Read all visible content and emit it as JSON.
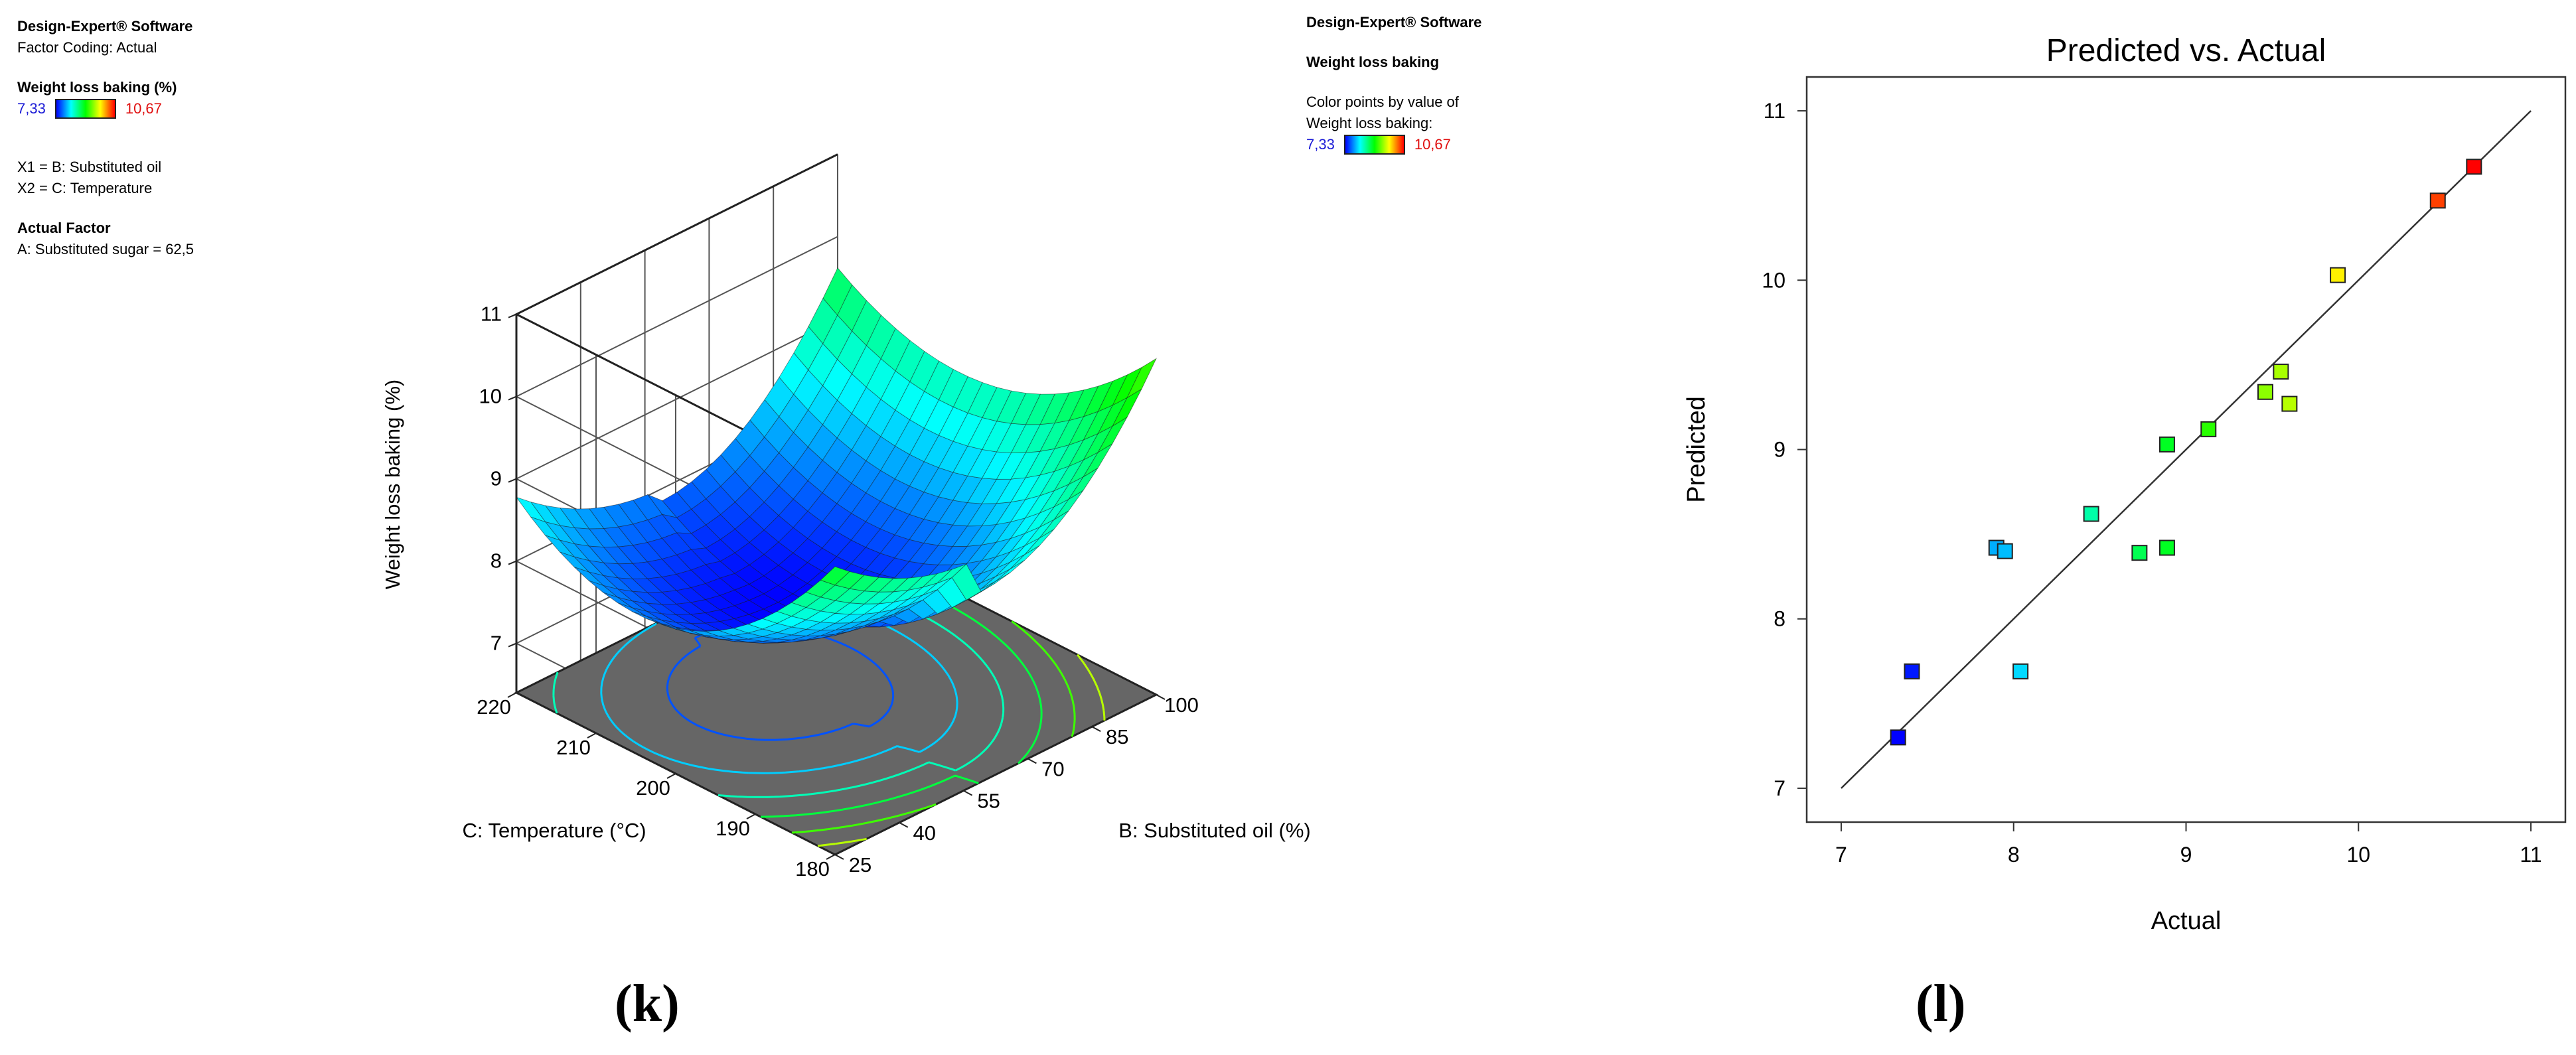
{
  "left_info": {
    "software": "Design-Expert® Software",
    "coding": "Factor Coding: Actual",
    "response": "Weight loss baking (%)",
    "legend_min": "7,33",
    "legend_max": "10,67",
    "x1": "X1 = B: Substituted oil",
    "x2": "X2 = C: Temperature",
    "actual_factor_title": "Actual Factor",
    "actual_factor": "A: Substituted sugar = 62,5"
  },
  "right_info": {
    "software": "Design-Expert® Software",
    "response": "Weight loss baking",
    "color_line1": "Color points by value of",
    "color_line2": "Weight loss baking:",
    "legend_min": "7,33",
    "legend_max": "10,67"
  },
  "panel_labels": {
    "left": "(k)",
    "right": "(l)"
  },
  "colorscale": {
    "low": "#0000ff",
    "mid_low": "#00ffff",
    "mid": "#00ff00",
    "mid_high": "#ffff00",
    "high": "#ff0000"
  },
  "chart_data": [
    {
      "type": "surface",
      "title": "",
      "zlabel": "Weight loss baking (%)",
      "xlabel": "B: Substituted oil (%)",
      "ylabel": "C: Temperature (°C)",
      "x_ticks": [
        "25",
        "40",
        "55",
        "70",
        "85",
        "100"
      ],
      "y_ticks": [
        "180",
        "190",
        "200",
        "210",
        "220"
      ],
      "z_ticks": [
        "7",
        "8",
        "9",
        "10",
        "11"
      ],
      "xlim": [
        25,
        100
      ],
      "ylim": [
        180,
        220
      ],
      "zlim": [
        6.4,
        11
      ],
      "model": {
        "min_z": 7.33,
        "corner_low_oil_high_temp": 8.3,
        "corner_low_oil_low_temp": 9.9,
        "corner_high_oil_high_temp": 9.1,
        "corner_high_oil_low_temp": 9.9
      },
      "contour_floor": "#666666"
    },
    {
      "type": "scatter",
      "title": "Predicted vs. Actual",
      "xlabel": "Actual",
      "ylabel": "Predicted",
      "xlim": [
        6.8,
        11.2
      ],
      "ylim": [
        6.8,
        11.2
      ],
      "x_ticks": [
        "7",
        "8",
        "9",
        "10",
        "11"
      ],
      "y_ticks": [
        "7",
        "8",
        "9",
        "10",
        "11"
      ],
      "reference_line": [
        [
          7,
          7
        ],
        [
          11,
          11
        ]
      ],
      "points": [
        {
          "x": 7.33,
          "y": 7.3
        },
        {
          "x": 7.41,
          "y": 7.69
        },
        {
          "x": 7.9,
          "y": 8.42
        },
        {
          "x": 7.95,
          "y": 8.4
        },
        {
          "x": 8.04,
          "y": 7.69
        },
        {
          "x": 8.45,
          "y": 8.62
        },
        {
          "x": 8.73,
          "y": 8.39
        },
        {
          "x": 8.89,
          "y": 8.42
        },
        {
          "x": 8.89,
          "y": 9.03
        },
        {
          "x": 9.13,
          "y": 9.12
        },
        {
          "x": 9.46,
          "y": 9.34
        },
        {
          "x": 9.55,
          "y": 9.46
        },
        {
          "x": 9.6,
          "y": 9.27
        },
        {
          "x": 9.88,
          "y": 10.03
        },
        {
          "x": 10.46,
          "y": 10.47
        },
        {
          "x": 10.67,
          "y": 10.67
        }
      ]
    }
  ]
}
